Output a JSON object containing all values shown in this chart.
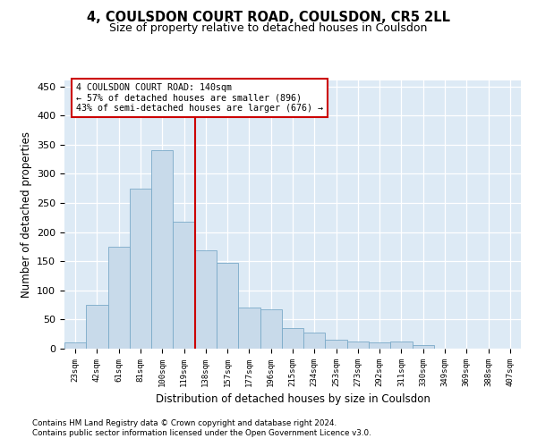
{
  "title": "4, COULSDON COURT ROAD, COULSDON, CR5 2LL",
  "subtitle": "Size of property relative to detached houses in Coulsdon",
  "xlabel": "Distribution of detached houses by size in Coulsdon",
  "ylabel": "Number of detached properties",
  "bar_color": "#c8daea",
  "bar_edge_color": "#7aaac8",
  "categories": [
    "23sqm",
    "42sqm",
    "61sqm",
    "81sqm",
    "100sqm",
    "119sqm",
    "138sqm",
    "157sqm",
    "177sqm",
    "196sqm",
    "215sqm",
    "234sqm",
    "253sqm",
    "273sqm",
    "292sqm",
    "311sqm",
    "330sqm",
    "349sqm",
    "369sqm",
    "388sqm",
    "407sqm"
  ],
  "values": [
    10,
    75,
    175,
    275,
    340,
    218,
    168,
    147,
    70,
    68,
    35,
    28,
    15,
    12,
    11,
    13,
    6,
    0,
    0,
    0,
    0
  ],
  "vline_color": "#cc0000",
  "annotation_line1": "4 COULSDON COURT ROAD: 140sqm",
  "annotation_line2": "← 57% of detached houses are smaller (896)",
  "annotation_line3": "43% of semi-detached houses are larger (676) →",
  "ylim_max": 460,
  "yticks": [
    0,
    50,
    100,
    150,
    200,
    250,
    300,
    350,
    400,
    450
  ],
  "background_color": "#ddeaf5",
  "grid_color": "#ffffff",
  "vline_index": 5.5,
  "footnote1": "Contains HM Land Registry data © Crown copyright and database right 2024.",
  "footnote2": "Contains public sector information licensed under the Open Government Licence v3.0."
}
